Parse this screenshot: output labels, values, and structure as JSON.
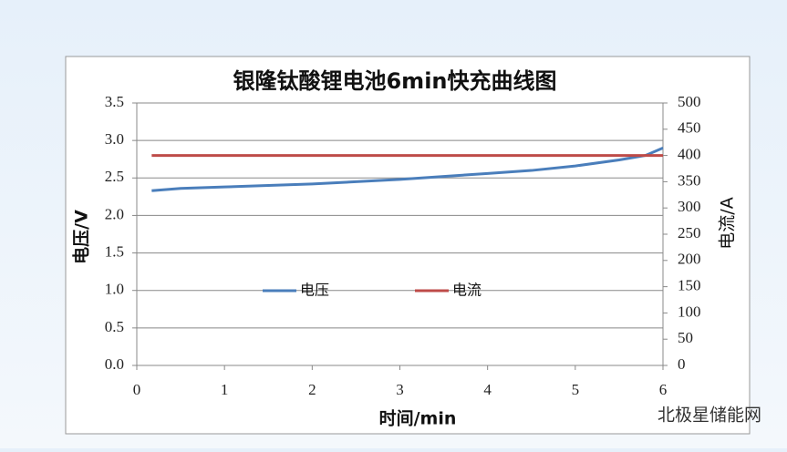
{
  "chart_data": {
    "type": "line",
    "title": "银隆钛酸锂电池6min快充曲线图",
    "x_label": "时间/min",
    "y_label": "电压/V",
    "y2_label": "电流/A",
    "series": [
      {
        "name": "电压",
        "color": "#4a7ebb",
        "x": [
          0.17,
          0.5,
          1,
          1.5,
          2,
          2.5,
          3,
          3.5,
          4,
          4.5,
          5,
          5.5,
          5.8,
          6
        ],
        "values": [
          2.33,
          2.36,
          2.38,
          2.4,
          2.42,
          2.45,
          2.48,
          2.52,
          2.56,
          2.6,
          2.66,
          2.74,
          2.8,
          2.9
        ]
      },
      {
        "name": "电流",
        "color": "#be4b48",
        "axis": "y2",
        "x": [
          0.17,
          6
        ],
        "values": [
          400,
          400
        ]
      }
    ],
    "xlim": [
      0,
      6
    ],
    "xticks": [
      0,
      1,
      2,
      3,
      4,
      5,
      6
    ],
    "ylim": [
      0,
      3.5
    ],
    "yticks": [
      {
        "value": 0,
        "label": "0.0"
      },
      0.5,
      {
        "value": 1,
        "label": "1.0"
      },
      1.5,
      {
        "value": 2,
        "label": "2.0"
      },
      2.5,
      {
        "value": 3,
        "label": "3.0"
      },
      3.5
    ],
    "y2lim": [
      0,
      500
    ],
    "y2ticks": [
      0,
      50,
      100,
      150,
      200,
      250,
      300,
      350,
      400,
      450,
      500
    ],
    "grid": true,
    "legend": "center",
    "watermark": "北极星储能网"
  }
}
